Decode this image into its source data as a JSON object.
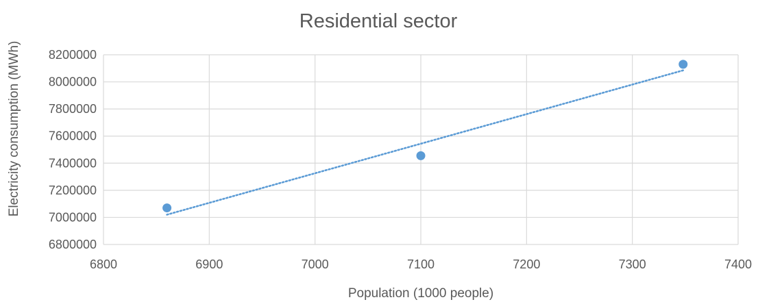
{
  "chart_data": {
    "type": "scatter",
    "title": "Residential sector",
    "xlabel": "Population (1000 people)",
    "ylabel": "Electricity consumption (MWh)",
    "xlim": [
      6800,
      7400
    ],
    "ylim": [
      6800000,
      8200000
    ],
    "x_ticks": [
      6800,
      6900,
      7000,
      7100,
      7200,
      7300,
      7400
    ],
    "y_ticks": [
      6800000,
      7000000,
      7200000,
      7400000,
      7600000,
      7800000,
      8000000,
      8200000
    ],
    "x_tick_labels": [
      "6800",
      "6900",
      "7000",
      "7100",
      "7200",
      "7300",
      "7400"
    ],
    "y_tick_labels": [
      "6800000",
      "7000000",
      "7200000",
      "7400000",
      "7600000",
      "7800000",
      "8000000",
      "8200000"
    ],
    "grid": true,
    "legend": "none",
    "series": [
      {
        "x": [
          6860,
          7100,
          7348
        ],
        "y": [
          7070000,
          7455000,
          8130000
        ],
        "color": "#5B9BD5",
        "marker": "circle"
      }
    ],
    "trendline": {
      "type": "linear",
      "style": "dotted",
      "color": "#5B9BD5",
      "x": [
        6860,
        7348
      ],
      "y": [
        7020000,
        8085000
      ]
    }
  }
}
